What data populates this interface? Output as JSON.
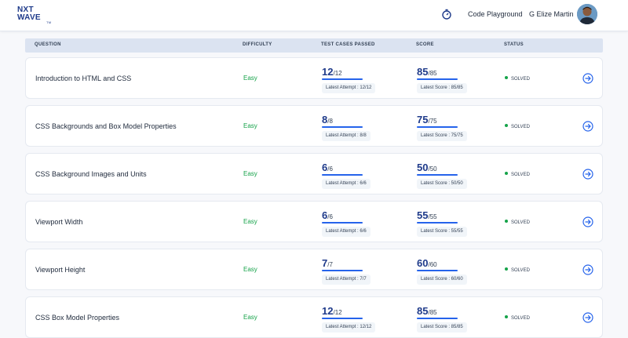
{
  "header": {
    "logo": {
      "line1": "NXT",
      "line2": "WAVE",
      "tm": "TM"
    },
    "nav_link": "Code Playground",
    "user_name": "G Elize Martin"
  },
  "table": {
    "columns": [
      "QUESTION",
      "DIFFICULTY",
      "TEST CASES PASSED",
      "SCORE",
      "STATUS"
    ],
    "rows": [
      {
        "question": "Introduction to HTML and CSS",
        "difficulty": "Easy",
        "passed": "12",
        "total_cases": "/12",
        "attempt": "Latest Attempt : 12/12",
        "score": "85",
        "max_score": "/85",
        "latest_score": "Latest Score : 85/85",
        "status": "SOLVED",
        "progress": 1
      },
      {
        "question": "CSS Backgrounds and Box Model Properties",
        "difficulty": "Easy",
        "passed": "8",
        "total_cases": "/8",
        "attempt": "Latest Attempt : 8/8",
        "score": "75",
        "max_score": "/75",
        "latest_score": "Latest Score : 75/75",
        "status": "SOLVED",
        "progress": 1
      },
      {
        "question": "CSS Background Images and Units",
        "difficulty": "Easy",
        "passed": "6",
        "total_cases": "/6",
        "attempt": "Latest Attempt : 6/6",
        "score": "50",
        "max_score": "/50",
        "latest_score": "Latest Score : 50/50",
        "status": "SOLVED",
        "progress": 1
      },
      {
        "question": "Viewport Width",
        "difficulty": "Easy",
        "passed": "6",
        "total_cases": "/6",
        "attempt": "Latest Attempt : 6/6",
        "score": "55",
        "max_score": "/55",
        "latest_score": "Latest Score : 55/55",
        "status": "SOLVED",
        "progress": 1
      },
      {
        "question": "Viewport Height",
        "difficulty": "Easy",
        "passed": "7",
        "total_cases": "/7",
        "attempt": "Latest Attempt : 7/7",
        "score": "60",
        "max_score": "/60",
        "latest_score": "Latest Score : 60/60",
        "status": "SOLVED",
        "progress": 1
      },
      {
        "question": "CSS Box Model Properties",
        "difficulty": "Easy",
        "passed": "12",
        "total_cases": "/12",
        "attempt": "Latest Attempt : 12/12",
        "score": "85",
        "max_score": "/85",
        "latest_score": "Latest Score : 85/85",
        "status": "SOLVED",
        "progress": 1
      }
    ]
  },
  "icons": {
    "nav": "stopwatch-icon",
    "row_action": "arrow-right-circle-icon"
  },
  "colors": {
    "accent": "#2563eb",
    "brand": "#1e3a8a",
    "success": "#16a34a",
    "header_bg": "#dbe3f1"
  }
}
